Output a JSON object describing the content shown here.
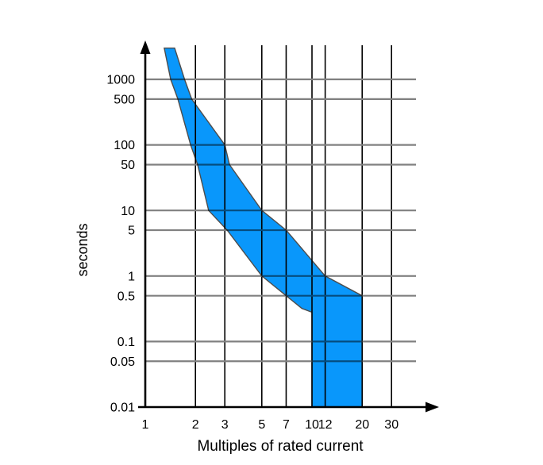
{
  "chart_data": {
    "type": "area",
    "title": "",
    "xlabel": "Multiples of rated current",
    "ylabel": "seconds",
    "x_axis": {
      "scale": "log",
      "range": [
        1,
        33
      ],
      "tick_values": [
        1,
        2,
        3,
        5,
        7,
        10,
        12,
        20,
        30
      ],
      "tick_labels": [
        "1",
        "2",
        "3",
        "5",
        "7",
        "10",
        "12",
        "20",
        "30"
      ]
    },
    "y_axis": {
      "scale": "log",
      "range": [
        0.01,
        3500
      ],
      "tick_values": [
        1000,
        500,
        100,
        50,
        10,
        5,
        1,
        0.5,
        0.1,
        0.05,
        0.01
      ],
      "tick_labels": [
        "1000",
        "500",
        "100",
        "50",
        "10",
        "5",
        "1",
        "0.5",
        "0.1",
        "0.05",
        "0.01"
      ]
    },
    "grid": true,
    "legend": false,
    "band": {
      "name": "trip-region",
      "description": "blue band between minimum and maximum trip curves; both curves become vertical (definite trip) between 10x and 20x rated current down to 0.01 s",
      "min_curve_x_seconds": [
        [
          1.3,
          3000
        ],
        [
          1.42,
          1000
        ],
        [
          1.57,
          500
        ],
        [
          1.87,
          100
        ],
        [
          2.06,
          50
        ],
        [
          2.4,
          10
        ],
        [
          3.1,
          5
        ],
        [
          5,
          1
        ],
        [
          7,
          0.5
        ],
        [
          8.7,
          0.32
        ],
        [
          10,
          0.28
        ],
        [
          10,
          0.01
        ]
      ],
      "max_curve_x_seconds": [
        [
          1.5,
          3000
        ],
        [
          1.72,
          1000
        ],
        [
          1.9,
          500
        ],
        [
          3.0,
          100
        ],
        [
          3.2,
          50
        ],
        [
          5,
          10
        ],
        [
          7,
          5
        ],
        [
          12,
          1
        ],
        [
          20,
          0.5
        ],
        [
          20,
          0.01
        ]
      ]
    },
    "colors": {
      "band_fill": "#0997fb",
      "band_stroke": "#4d4d4d",
      "grid_horizontal": "#808080",
      "grid_vertical": "#000000",
      "axis": "#000000",
      "text": "#000000",
      "background": "#ffffff"
    }
  }
}
